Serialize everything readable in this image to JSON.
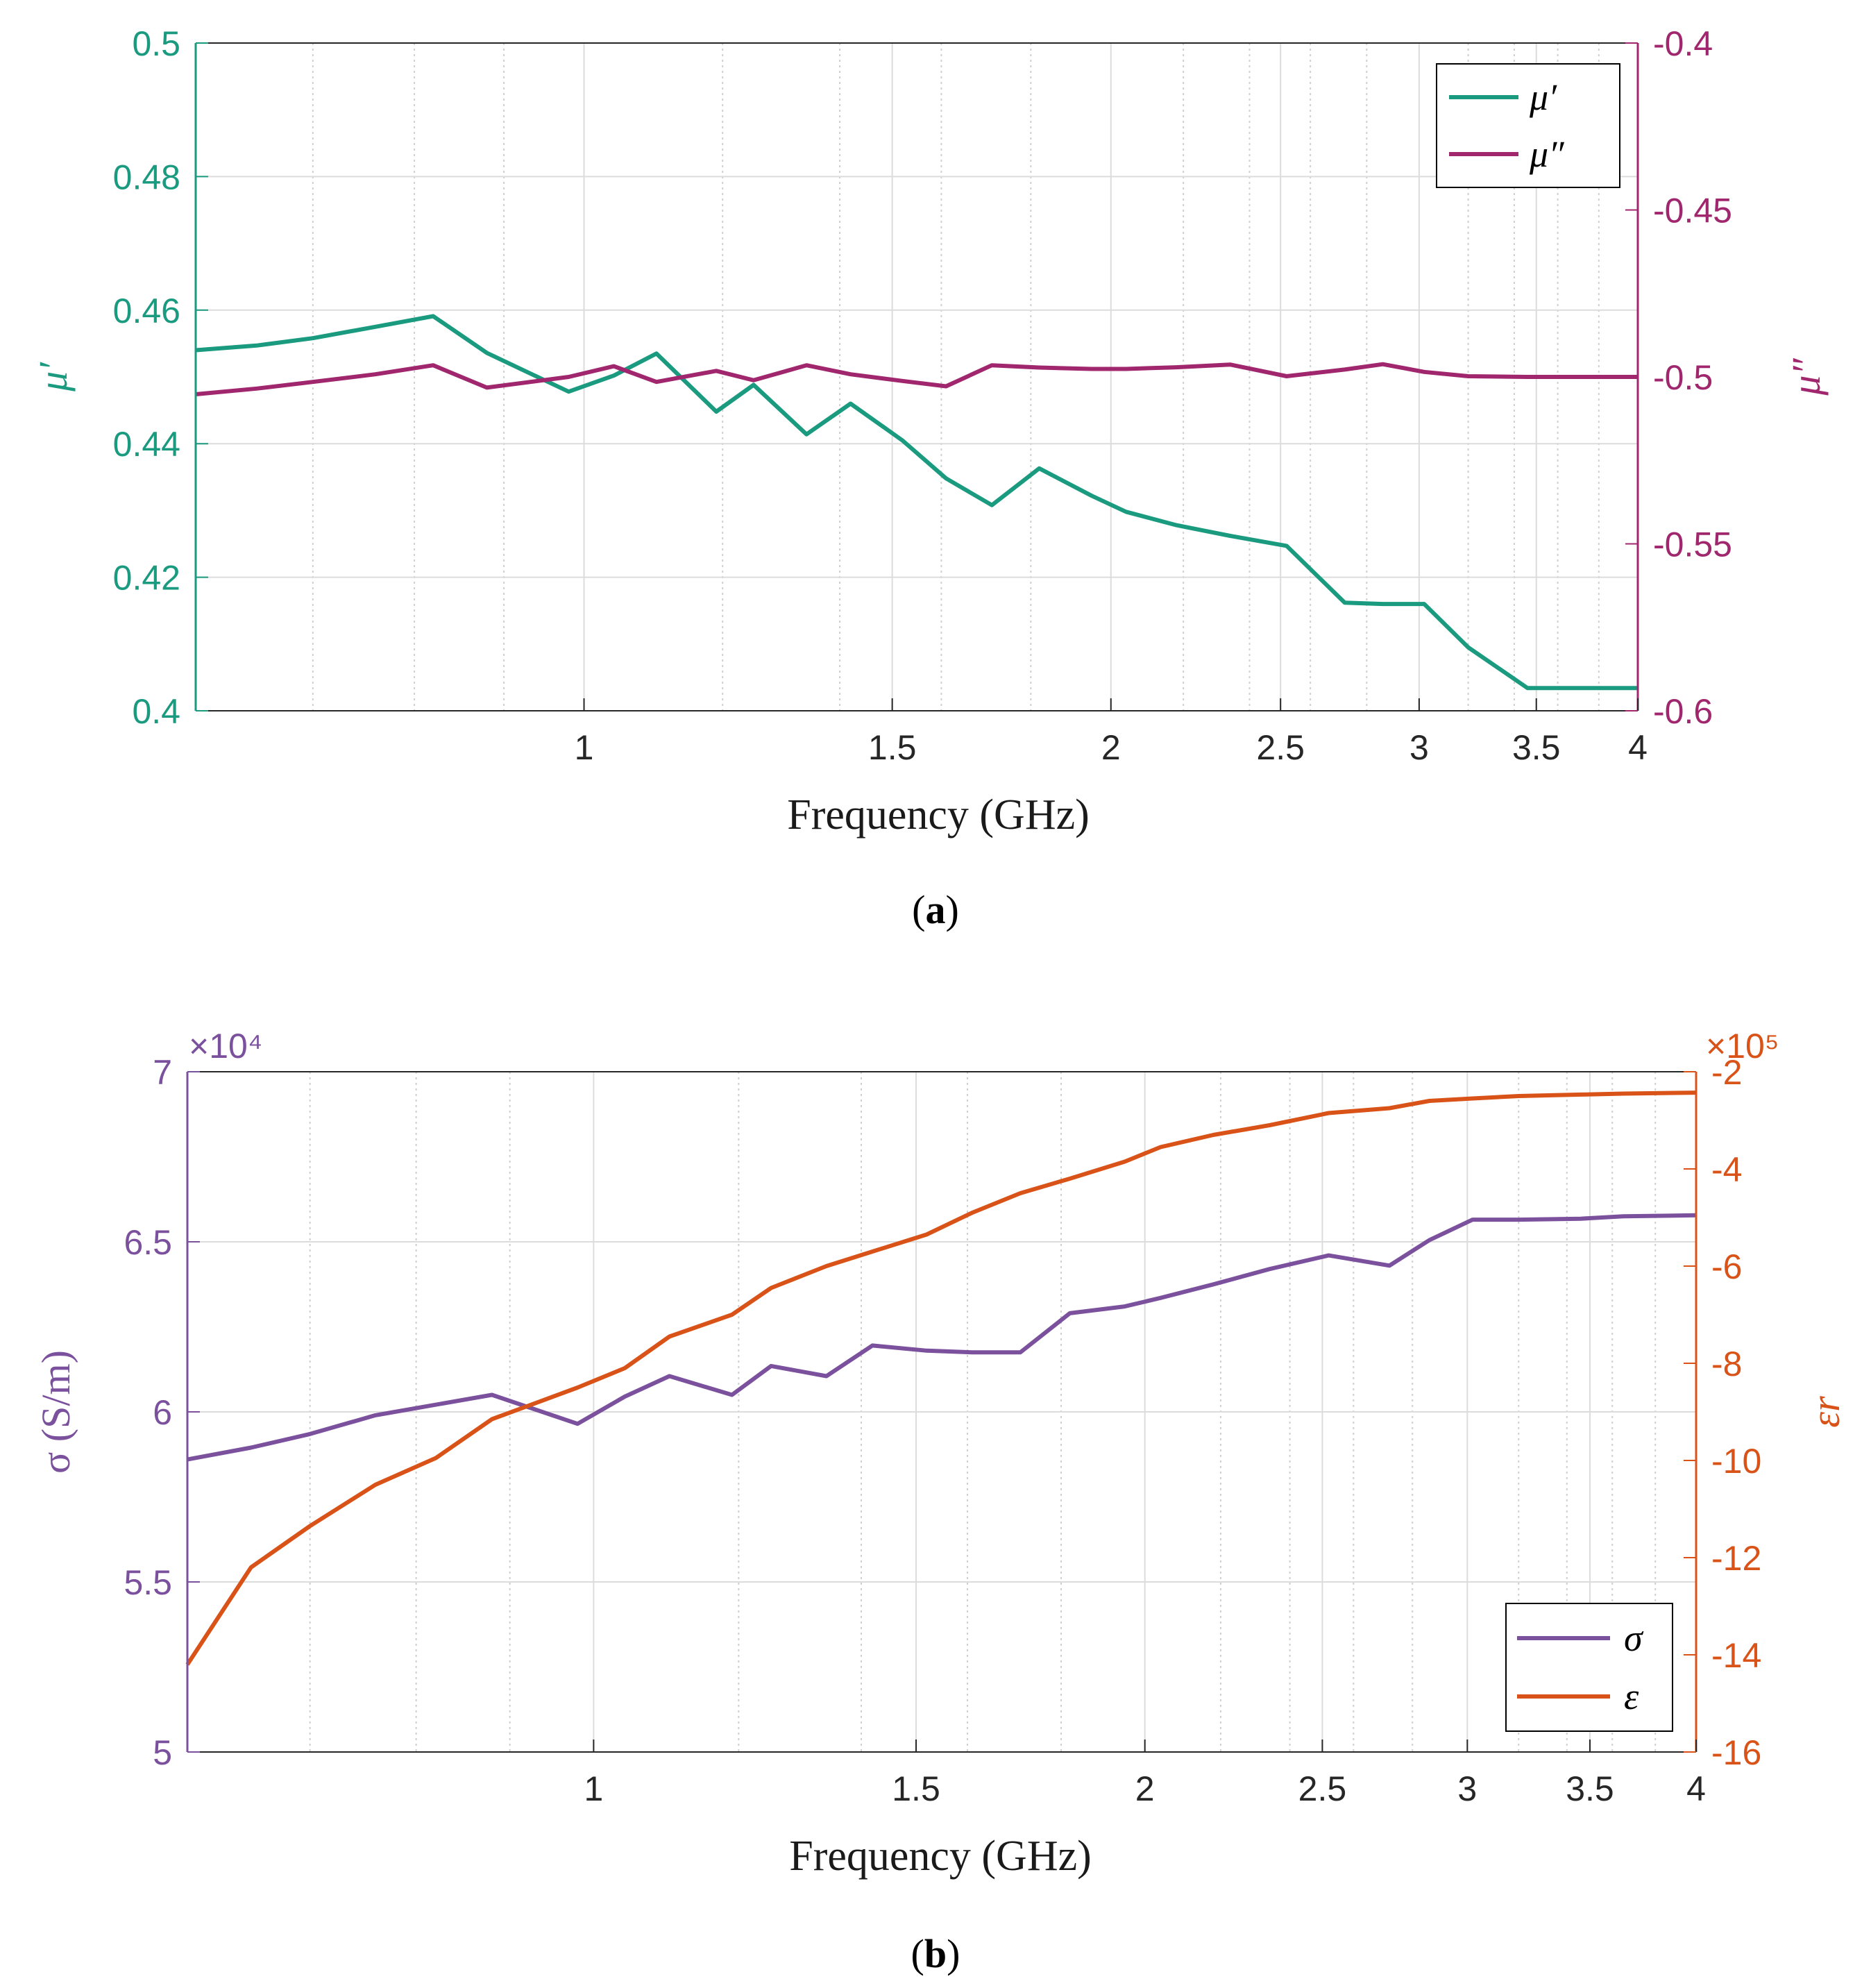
{
  "chart_data": [
    {
      "id": "a",
      "type": "line",
      "caption_letter": "a",
      "xlabel": "Frequency (GHz)",
      "xscale": "log",
      "xlim": [
        0.6,
        4
      ],
      "xticks": [
        1,
        1.5,
        2,
        2.5,
        3,
        3.5,
        4
      ],
      "xtick_labels": [
        "1",
        "1.5",
        "2",
        "2.5",
        "3",
        "3.5",
        "4"
      ],
      "left_axis": {
        "label": "μ′",
        "ylim": [
          0.4,
          0.5
        ],
        "ticks": [
          0.4,
          0.42,
          0.44,
          0.46,
          0.48,
          0.5
        ],
        "tick_labels": [
          "0.4",
          "0.42",
          "0.44",
          "0.46",
          "0.48",
          "0.5"
        ],
        "color": "#1a9a7f"
      },
      "right_axis": {
        "label": "μ″",
        "ylim": [
          -0.6,
          -0.4
        ],
        "ticks": [
          -0.6,
          -0.55,
          -0.5,
          -0.45,
          -0.4
        ],
        "tick_labels": [
          "-0.6",
          "-0.55",
          "-0.5",
          "-0.45",
          "-0.4"
        ],
        "color": "#a0276e"
      },
      "legend": {
        "placement": "top-right"
      },
      "series": [
        {
          "name": "μ′",
          "axis": "left",
          "color": "#1a9a7f",
          "x": [
            0.6,
            0.65,
            0.7,
            0.76,
            0.82,
            0.88,
            0.98,
            1.04,
            1.1,
            1.19,
            1.25,
            1.34,
            1.42,
            1.52,
            1.61,
            1.71,
            1.82,
            1.95,
            2.04,
            2.18,
            2.34,
            2.52,
            2.72,
            2.86,
            3.02,
            3.2,
            3.46,
            3.65,
            4.0
          ],
          "values": [
            0.454,
            0.4547,
            0.4558,
            0.4575,
            0.4591,
            0.4536,
            0.4478,
            0.4502,
            0.4535,
            0.4448,
            0.4488,
            0.4414,
            0.446,
            0.4405,
            0.4348,
            0.4308,
            0.4363,
            0.4322,
            0.4298,
            0.4278,
            0.4262,
            0.4247,
            0.4162,
            0.416,
            0.416,
            0.4095,
            0.4034,
            0.4034,
            0.4034
          ]
        },
        {
          "name": "μ″",
          "axis": "right",
          "color": "#a0276e",
          "x": [
            0.6,
            0.65,
            0.7,
            0.76,
            0.82,
            0.88,
            0.98,
            1.04,
            1.1,
            1.19,
            1.25,
            1.34,
            1.42,
            1.52,
            1.61,
            1.71,
            1.82,
            1.95,
            2.04,
            2.18,
            2.34,
            2.52,
            2.72,
            2.86,
            3.02,
            3.2,
            3.46,
            3.65,
            4.0
          ],
          "values": [
            -0.5052,
            -0.5035,
            -0.5015,
            -0.4992,
            -0.4965,
            -0.5032,
            -0.5,
            -0.4968,
            -0.5015,
            -0.4982,
            -0.501,
            -0.4965,
            -0.4992,
            -0.5012,
            -0.5028,
            -0.4965,
            -0.4972,
            -0.4976,
            -0.4976,
            -0.4971,
            -0.4963,
            -0.4998,
            -0.4978,
            -0.4962,
            -0.4985,
            -0.4998,
            -0.5,
            -0.5,
            -0.5
          ]
        }
      ]
    },
    {
      "id": "b",
      "type": "line",
      "caption_letter": "b",
      "xlabel": "Frequency (GHz)",
      "xscale": "log",
      "xlim": [
        0.6,
        4
      ],
      "xticks": [
        1,
        1.5,
        2,
        2.5,
        3,
        3.5,
        4
      ],
      "xtick_labels": [
        "1",
        "1.5",
        "2",
        "2.5",
        "3",
        "3.5",
        "4"
      ],
      "left_axis": {
        "label": "σ (S/m)",
        "multiplier": "×10⁴",
        "ylim": [
          5,
          7
        ],
        "ticks": [
          5,
          5.5,
          6,
          6.5,
          7
        ],
        "tick_labels": [
          "5",
          "5.5",
          "6",
          "6.5",
          "7"
        ],
        "color": "#7b519d"
      },
      "right_axis": {
        "label": "εr",
        "multiplier": "×10⁵",
        "ylim": [
          -16,
          -2
        ],
        "ticks": [
          -16,
          -14,
          -12,
          -10,
          -8,
          -6,
          -4,
          -2
        ],
        "tick_labels": [
          "-16",
          "-14",
          "-12",
          "-10",
          "-8",
          "-6",
          "-4",
          "-2"
        ],
        "color": "#d95319"
      },
      "legend": {
        "placement": "bottom-right"
      },
      "series": [
        {
          "name": "σ",
          "axis": "left",
          "color": "#7b519d",
          "x": [
            0.6,
            0.65,
            0.7,
            0.76,
            0.88,
            0.98,
            1.04,
            1.1,
            1.19,
            1.25,
            1.34,
            1.42,
            1.52,
            1.61,
            1.71,
            1.82,
            1.95,
            2.04,
            2.18,
            2.34,
            2.52,
            2.72,
            2.86,
            3.02,
            3.2,
            3.46,
            3.65,
            4.0
          ],
          "values": [
            5.86,
            5.895,
            5.935,
            5.99,
            6.05,
            5.965,
            6.045,
            6.105,
            6.05,
            6.135,
            6.105,
            6.195,
            6.18,
            6.175,
            6.175,
            6.29,
            6.31,
            6.335,
            6.375,
            6.42,
            6.46,
            6.43,
            6.505,
            6.565,
            6.565,
            6.568,
            6.575,
            6.578
          ]
        },
        {
          "name": "ε",
          "axis": "right",
          "color": "#d95319",
          "x": [
            0.6,
            0.65,
            0.7,
            0.76,
            0.82,
            0.88,
            0.98,
            1.04,
            1.1,
            1.19,
            1.25,
            1.34,
            1.42,
            1.52,
            1.61,
            1.71,
            1.82,
            1.95,
            2.04,
            2.18,
            2.34,
            2.52,
            2.72,
            2.86,
            3.02,
            3.2,
            3.46,
            3.65,
            4.0
          ],
          "values": [
            -14.2,
            -12.2,
            -11.35,
            -10.5,
            -9.95,
            -9.15,
            -8.5,
            -8.1,
            -7.45,
            -7.0,
            -6.45,
            -6.0,
            -5.7,
            -5.35,
            -4.9,
            -4.5,
            -4.2,
            -3.85,
            -3.55,
            -3.3,
            -3.1,
            -2.85,
            -2.75,
            -2.6,
            -2.55,
            -2.5,
            -2.47,
            -2.45,
            -2.43
          ]
        }
      ]
    }
  ]
}
